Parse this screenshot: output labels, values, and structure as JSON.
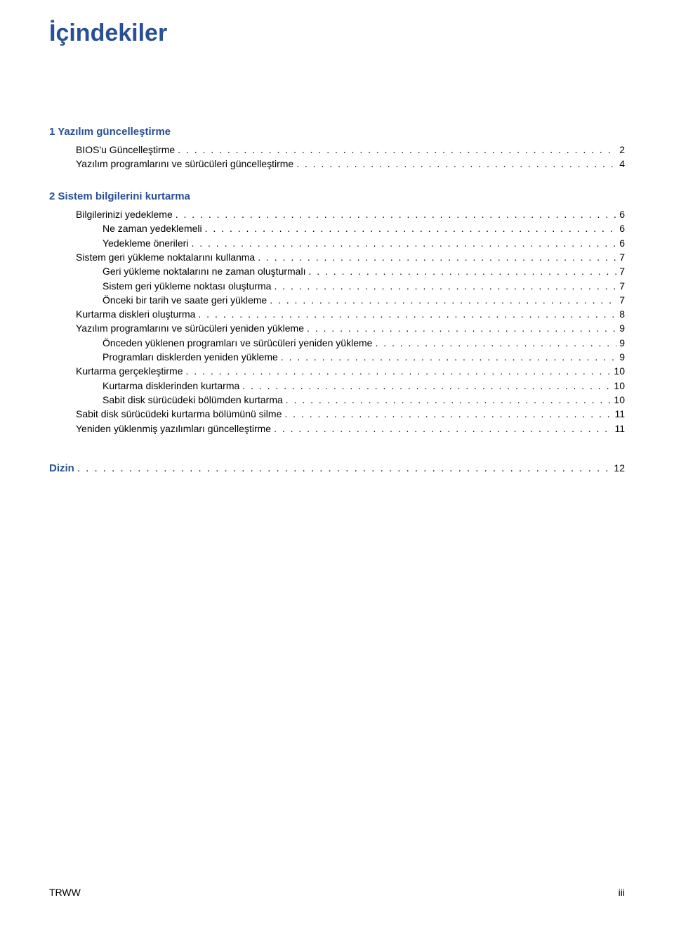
{
  "title": "İçindekiler",
  "sections": [
    {
      "heading": "1  Yazılım güncelleştirme",
      "entries": [
        {
          "indent": 1,
          "label": "BIOS'u Güncelleştirme",
          "page": "2"
        },
        {
          "indent": 1,
          "label": "Yazılım programlarını ve sürücüleri güncelleştirme",
          "page": "4"
        }
      ]
    },
    {
      "heading": "2  Sistem bilgilerini kurtarma",
      "entries": [
        {
          "indent": 1,
          "label": "Bilgilerinizi yedekleme",
          "page": "6"
        },
        {
          "indent": 2,
          "label": "Ne zaman yedeklemeli",
          "page": "6"
        },
        {
          "indent": 2,
          "label": "Yedekleme önerileri",
          "page": "6"
        },
        {
          "indent": 1,
          "label": "Sistem geri yükleme noktalarını kullanma",
          "page": "7"
        },
        {
          "indent": 2,
          "label": "Geri yükleme noktalarını ne zaman oluşturmalı",
          "page": "7"
        },
        {
          "indent": 2,
          "label": "Sistem geri yükleme noktası oluşturma",
          "page": "7"
        },
        {
          "indent": 2,
          "label": "Önceki bir tarih ve saate geri yükleme",
          "page": "7"
        },
        {
          "indent": 1,
          "label": "Kurtarma diskleri oluşturma",
          "page": "8"
        },
        {
          "indent": 1,
          "label": "Yazılım programlarını ve sürücüleri yeniden yükleme",
          "page": "9"
        },
        {
          "indent": 2,
          "label": "Önceden yüklenen programları ve sürücüleri yeniden yükleme",
          "page": "9"
        },
        {
          "indent": 2,
          "label": "Programları disklerden yeniden yükleme",
          "page": "9"
        },
        {
          "indent": 1,
          "label": "Kurtarma gerçekleştirme",
          "page": "10"
        },
        {
          "indent": 2,
          "label": "Kurtarma disklerinden kurtarma",
          "page": "10"
        },
        {
          "indent": 2,
          "label": "Sabit disk sürücüdeki bölümden kurtarma",
          "page": "10"
        },
        {
          "indent": 1,
          "label": "Sabit disk sürücüdeki kurtarma bölümünü silme",
          "page": "11"
        },
        {
          "indent": 1,
          "label": "Yeniden yüklenmiş yazılımları güncelleştirme",
          "page": "11"
        }
      ]
    }
  ],
  "index": {
    "label": "Dizin",
    "page": "12"
  },
  "footer": {
    "left": "TRWW",
    "right": "iii"
  },
  "colors": {
    "link": "#294f94",
    "text": "#000000",
    "background": "#ffffff"
  },
  "fonts": {
    "title_size": 34,
    "heading_size": 15,
    "body_size": 14
  }
}
